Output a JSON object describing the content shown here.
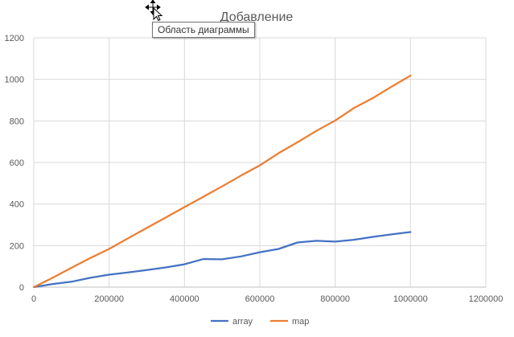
{
  "tooltip": {
    "text": "Область диаграммы"
  },
  "colors": {
    "array": "#4472C4",
    "map": "#ED7D31",
    "grid": "#d9d9d9",
    "text": "#595959"
  },
  "chart_data": {
    "type": "line",
    "title": "Добавление",
    "xlabel": "",
    "ylabel": "",
    "xlim": [
      0,
      1200000
    ],
    "ylim": [
      0,
      1200
    ],
    "x_ticks": [
      0,
      200000,
      400000,
      600000,
      800000,
      1000000,
      1200000
    ],
    "y_ticks": [
      0,
      200,
      400,
      600,
      800,
      1000,
      1200
    ],
    "grid": true,
    "legend_position": "bottom",
    "series": [
      {
        "name": "array",
        "color_key": "array",
        "x": [
          0,
          50000,
          100000,
          150000,
          200000,
          250000,
          300000,
          350000,
          400000,
          450000,
          500000,
          550000,
          600000,
          650000,
          700000,
          750000,
          800000,
          850000,
          900000,
          950000,
          1000000
        ],
        "values": [
          0,
          15,
          26,
          45,
          60,
          71,
          82,
          95,
          110,
          135,
          134,
          148,
          168,
          184,
          215,
          223,
          219,
          228,
          242,
          254,
          265
        ]
      },
      {
        "name": "map",
        "color_key": "map",
        "x": [
          0,
          50000,
          100000,
          150000,
          200000,
          250000,
          300000,
          350000,
          400000,
          450000,
          500000,
          550000,
          600000,
          650000,
          700000,
          750000,
          800000,
          850000,
          900000,
          950000,
          1000000
        ],
        "values": [
          0,
          45,
          93,
          140,
          184,
          235,
          285,
          335,
          385,
          435,
          485,
          537,
          586,
          645,
          697,
          752,
          802,
          862,
          910,
          965,
          1018
        ]
      }
    ]
  }
}
